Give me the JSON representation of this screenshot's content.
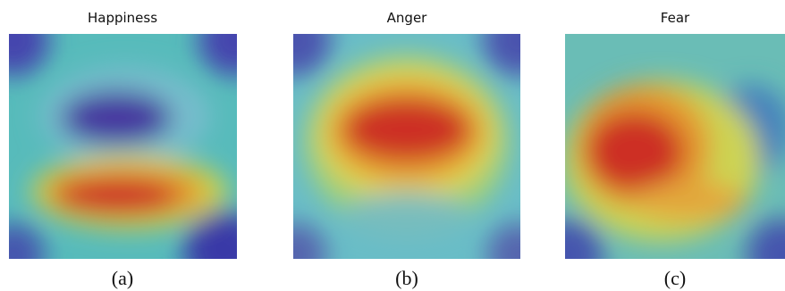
{
  "panels": [
    {
      "title": "Happiness",
      "caption": "(a)"
    },
    {
      "title": "Anger",
      "caption": "(b)"
    },
    {
      "title": "Fear",
      "caption": "(c)"
    }
  ]
}
